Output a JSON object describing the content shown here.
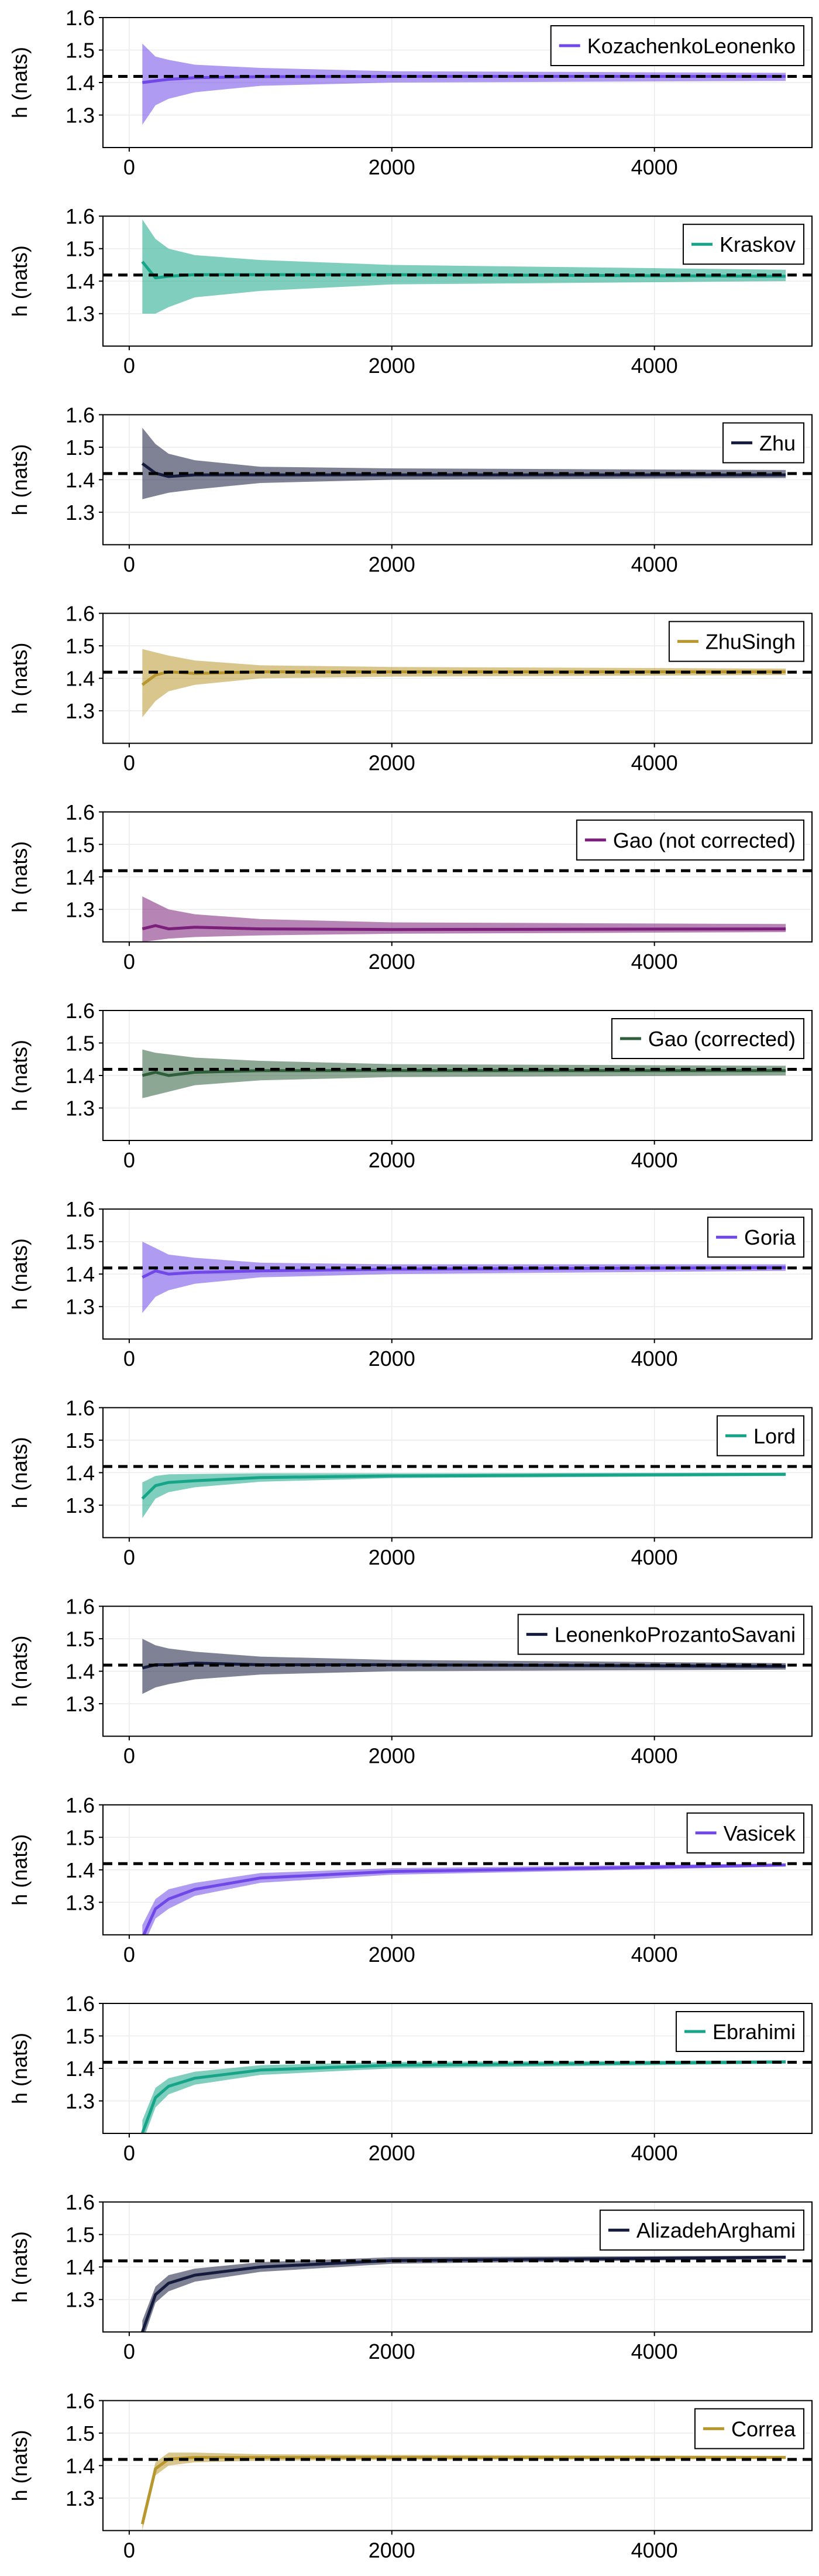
{
  "chart_data": [
    {
      "type": "line",
      "x": [
        100,
        200,
        300,
        500,
        1000,
        2000,
        5000
      ],
      "xlim": [
        -200,
        5200
      ],
      "ylim": [
        1.2,
        1.6
      ],
      "xticks": [
        0,
        2000,
        4000
      ],
      "yticks": [
        1.3,
        1.4,
        1.5,
        1.6
      ],
      "ylabel": "h (nats)",
      "reference_line": 1.4189,
      "legend_position": "top-right",
      "grid": true,
      "series": [
        {
          "name": "KozachenkoLeonenko",
          "color": "#7048e8",
          "values": [
            1.4,
            1.405,
            1.41,
            1.415,
            1.418,
            1.419,
            1.419
          ],
          "lower": [
            1.27,
            1.33,
            1.35,
            1.37,
            1.39,
            1.4,
            1.405
          ],
          "upper": [
            1.52,
            1.48,
            1.47,
            1.455,
            1.445,
            1.435,
            1.43
          ]
        }
      ]
    },
    {
      "type": "line",
      "x": [
        100,
        200,
        300,
        500,
        1000,
        2000,
        5000
      ],
      "xlim": [
        -200,
        5200
      ],
      "ylim": [
        1.2,
        1.6
      ],
      "xticks": [
        0,
        2000,
        4000
      ],
      "yticks": [
        1.3,
        1.4,
        1.5,
        1.6
      ],
      "ylabel": "h (nats)",
      "reference_line": 1.4189,
      "legend_position": "top-right",
      "grid": true,
      "series": [
        {
          "name": "Kraskov",
          "color": "#17a589",
          "values": [
            1.46,
            1.41,
            1.415,
            1.42,
            1.42,
            1.42,
            1.415
          ],
          "lower": [
            1.3,
            1.3,
            1.32,
            1.35,
            1.37,
            1.39,
            1.4
          ],
          "upper": [
            1.59,
            1.53,
            1.5,
            1.48,
            1.465,
            1.45,
            1.435
          ]
        }
      ]
    },
    {
      "type": "line",
      "x": [
        100,
        200,
        300,
        500,
        1000,
        2000,
        5000
      ],
      "xlim": [
        -200,
        5200
      ],
      "ylim": [
        1.2,
        1.6
      ],
      "xticks": [
        0,
        2000,
        4000
      ],
      "yticks": [
        1.3,
        1.4,
        1.5,
        1.6
      ],
      "ylabel": "h (nats)",
      "reference_line": 1.4189,
      "legend_position": "top-right",
      "grid": true,
      "series": [
        {
          "name": "Zhu",
          "color": "#141b3d",
          "values": [
            1.45,
            1.42,
            1.41,
            1.415,
            1.415,
            1.415,
            1.415
          ],
          "lower": [
            1.34,
            1.35,
            1.36,
            1.37,
            1.39,
            1.4,
            1.405
          ],
          "upper": [
            1.56,
            1.51,
            1.48,
            1.46,
            1.44,
            1.435,
            1.43
          ]
        }
      ]
    },
    {
      "type": "line",
      "x": [
        100,
        200,
        300,
        500,
        1000,
        2000,
        5000
      ],
      "xlim": [
        -200,
        5200
      ],
      "ylim": [
        1.2,
        1.6
      ],
      "xticks": [
        0,
        2000,
        4000
      ],
      "yticks": [
        1.3,
        1.4,
        1.5,
        1.6
      ],
      "ylabel": "h (nats)",
      "reference_line": 1.4189,
      "legend_position": "top-right",
      "grid": true,
      "series": [
        {
          "name": "ZhuSingh",
          "color": "#b8972e",
          "values": [
            1.38,
            1.41,
            1.42,
            1.415,
            1.42,
            1.42,
            1.42
          ],
          "lower": [
            1.28,
            1.33,
            1.36,
            1.38,
            1.4,
            1.405,
            1.41
          ],
          "upper": [
            1.49,
            1.48,
            1.47,
            1.455,
            1.44,
            1.435,
            1.43
          ]
        }
      ]
    },
    {
      "type": "line",
      "x": [
        100,
        200,
        300,
        500,
        1000,
        2000,
        5000
      ],
      "xlim": [
        -200,
        5200
      ],
      "ylim": [
        1.2,
        1.6
      ],
      "xticks": [
        0,
        2000,
        4000
      ],
      "yticks": [
        1.3,
        1.4,
        1.5,
        1.6
      ],
      "ylabel": "h (nats)",
      "reference_line": 1.4189,
      "legend_position": "top-right",
      "grid": true,
      "series": [
        {
          "name": "Gao (not corrected)",
          "color": "#7b1f7a",
          "values": [
            1.24,
            1.25,
            1.24,
            1.245,
            1.24,
            1.238,
            1.24
          ],
          "lower": [
            1.2,
            1.205,
            1.21,
            1.215,
            1.22,
            1.225,
            1.23
          ],
          "upper": [
            1.34,
            1.32,
            1.3,
            1.285,
            1.27,
            1.26,
            1.255
          ]
        }
      ]
    },
    {
      "type": "line",
      "x": [
        100,
        200,
        300,
        500,
        1000,
        2000,
        5000
      ],
      "xlim": [
        -200,
        5200
      ],
      "ylim": [
        1.2,
        1.6
      ],
      "xticks": [
        0,
        2000,
        4000
      ],
      "yticks": [
        1.3,
        1.4,
        1.5,
        1.6
      ],
      "ylabel": "h (nats)",
      "reference_line": 1.4189,
      "legend_position": "top-right",
      "grid": true,
      "series": [
        {
          "name": "Gao (corrected)",
          "color": "#2e5e3a",
          "values": [
            1.4,
            1.41,
            1.4,
            1.41,
            1.415,
            1.415,
            1.415
          ],
          "lower": [
            1.33,
            1.34,
            1.35,
            1.37,
            1.385,
            1.395,
            1.4
          ],
          "upper": [
            1.48,
            1.47,
            1.465,
            1.455,
            1.445,
            1.435,
            1.43
          ]
        }
      ]
    },
    {
      "type": "line",
      "x": [
        100,
        200,
        300,
        500,
        1000,
        2000,
        5000
      ],
      "xlim": [
        -200,
        5200
      ],
      "ylim": [
        1.2,
        1.6
      ],
      "xticks": [
        0,
        2000,
        4000
      ],
      "yticks": [
        1.3,
        1.4,
        1.5,
        1.6
      ],
      "ylabel": "h (nats)",
      "reference_line": 1.4189,
      "legend_position": "top-right",
      "grid": true,
      "series": [
        {
          "name": "Goria",
          "color": "#7048e8",
          "values": [
            1.39,
            1.41,
            1.4,
            1.405,
            1.41,
            1.415,
            1.42
          ],
          "lower": [
            1.28,
            1.33,
            1.35,
            1.37,
            1.39,
            1.4,
            1.41
          ],
          "upper": [
            1.5,
            1.48,
            1.46,
            1.45,
            1.435,
            1.43,
            1.43
          ]
        }
      ]
    },
    {
      "type": "line",
      "x": [
        100,
        200,
        300,
        500,
        1000,
        2000,
        5000
      ],
      "xlim": [
        -200,
        5200
      ],
      "ylim": [
        1.2,
        1.6
      ],
      "xticks": [
        0,
        2000,
        4000
      ],
      "yticks": [
        1.3,
        1.4,
        1.5,
        1.6
      ],
      "ylabel": "h (nats)",
      "reference_line": 1.4189,
      "legend_position": "top-right",
      "grid": true,
      "series": [
        {
          "name": "Lord",
          "color": "#17a589",
          "values": [
            1.32,
            1.36,
            1.37,
            1.375,
            1.385,
            1.39,
            1.395
          ],
          "lower": [
            1.26,
            1.32,
            1.34,
            1.355,
            1.372,
            1.383,
            1.39
          ],
          "upper": [
            1.37,
            1.39,
            1.395,
            1.396,
            1.398,
            1.398,
            1.4
          ]
        }
      ]
    },
    {
      "type": "line",
      "x": [
        100,
        200,
        300,
        500,
        1000,
        2000,
        5000
      ],
      "xlim": [
        -200,
        5200
      ],
      "ylim": [
        1.2,
        1.6
      ],
      "xticks": [
        0,
        2000,
        4000
      ],
      "yticks": [
        1.3,
        1.4,
        1.5,
        1.6
      ],
      "ylabel": "h (nats)",
      "reference_line": 1.4189,
      "legend_position": "top-right",
      "grid": true,
      "series": [
        {
          "name": "LeonenkoProzantoSavani",
          "color": "#141b3d",
          "values": [
            1.41,
            1.42,
            1.42,
            1.425,
            1.42,
            1.42,
            1.415
          ],
          "lower": [
            1.33,
            1.35,
            1.36,
            1.375,
            1.39,
            1.4,
            1.405
          ],
          "upper": [
            1.5,
            1.48,
            1.47,
            1.46,
            1.445,
            1.435,
            1.425
          ]
        }
      ]
    },
    {
      "type": "line",
      "x": [
        100,
        200,
        300,
        500,
        1000,
        2000,
        5000
      ],
      "xlim": [
        -200,
        5200
      ],
      "ylim": [
        1.2,
        1.6
      ],
      "xticks": [
        0,
        2000,
        4000
      ],
      "yticks": [
        1.3,
        1.4,
        1.5,
        1.6
      ],
      "ylabel": "h (nats)",
      "reference_line": 1.4189,
      "legend_position": "top-right",
      "grid": true,
      "series": [
        {
          "name": "Vasicek",
          "color": "#7048e8",
          "values": [
            1.19,
            1.28,
            1.31,
            1.34,
            1.375,
            1.395,
            1.415
          ],
          "lower": [
            1.16,
            1.25,
            1.28,
            1.32,
            1.36,
            1.385,
            1.41
          ],
          "upper": [
            1.23,
            1.31,
            1.34,
            1.36,
            1.39,
            1.405,
            1.42
          ]
        }
      ]
    },
    {
      "type": "line",
      "x": [
        100,
        200,
        300,
        500,
        1000,
        2000,
        5000
      ],
      "xlim": [
        -200,
        5200
      ],
      "ylim": [
        1.2,
        1.6
      ],
      "xticks": [
        0,
        2000,
        4000
      ],
      "yticks": [
        1.3,
        1.4,
        1.5,
        1.6
      ],
      "ylabel": "h (nats)",
      "reference_line": 1.4189,
      "legend_position": "top-right",
      "grid": true,
      "series": [
        {
          "name": "Ebrahimi",
          "color": "#17a589",
          "values": [
            1.2,
            1.31,
            1.345,
            1.37,
            1.395,
            1.41,
            1.42
          ],
          "lower": [
            1.17,
            1.28,
            1.32,
            1.35,
            1.38,
            1.4,
            1.415
          ],
          "upper": [
            1.24,
            1.34,
            1.37,
            1.39,
            1.41,
            1.42,
            1.425
          ]
        }
      ]
    },
    {
      "type": "line",
      "x": [
        100,
        200,
        300,
        500,
        1000,
        2000,
        5000
      ],
      "xlim": [
        -200,
        5200
      ],
      "ylim": [
        1.2,
        1.6
      ],
      "xticks": [
        0,
        2000,
        4000
      ],
      "yticks": [
        1.3,
        1.4,
        1.5,
        1.6
      ],
      "ylabel": "h (nats)",
      "reference_line": 1.4189,
      "legend_position": "top-right",
      "grid": true,
      "series": [
        {
          "name": "AlizadehArghami",
          "color": "#141b3d",
          "values": [
            1.2,
            1.315,
            1.35,
            1.375,
            1.4,
            1.42,
            1.43
          ],
          "lower": [
            1.17,
            1.29,
            1.325,
            1.355,
            1.385,
            1.41,
            1.425
          ],
          "upper": [
            1.235,
            1.34,
            1.375,
            1.395,
            1.415,
            1.43,
            1.435
          ]
        }
      ]
    },
    {
      "type": "line",
      "x": [
        100,
        200,
        300,
        500,
        1000,
        2000,
        5000
      ],
      "xlim": [
        -200,
        5200
      ],
      "ylim": [
        1.2,
        1.6
      ],
      "xticks": [
        0,
        2000,
        4000
      ],
      "yticks": [
        1.3,
        1.4,
        1.5,
        1.6
      ],
      "ylabel": "h (nats)",
      "reference_line": 1.4189,
      "legend_position": "top-right",
      "grid": true,
      "series": [
        {
          "name": "Correa",
          "color": "#b8972e",
          "values": [
            1.22,
            1.39,
            1.42,
            1.425,
            1.425,
            1.425,
            1.425
          ],
          "lower": [
            1.2,
            1.37,
            1.4,
            1.41,
            1.415,
            1.418,
            1.42
          ],
          "upper": [
            1.24,
            1.41,
            1.44,
            1.44,
            1.435,
            1.433,
            1.43
          ]
        }
      ]
    }
  ]
}
